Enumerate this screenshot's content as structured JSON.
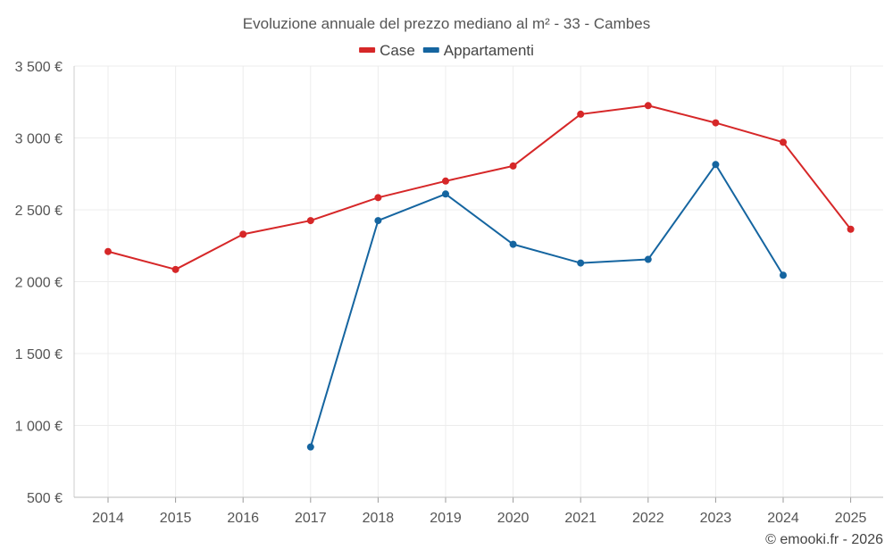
{
  "chart_data": {
    "type": "line",
    "title": "Evoluzione annuale del prezzo mediano al m² - 33 - Cambes",
    "categories": [
      "2014",
      "2015",
      "2016",
      "2017",
      "2018",
      "2019",
      "2020",
      "2021",
      "2022",
      "2023",
      "2024",
      "2025"
    ],
    "y_ticks": [
      500,
      1000,
      1500,
      2000,
      2500,
      3000,
      3500
    ],
    "y_tick_labels": [
      "500 €",
      "1 000 €",
      "1 500 €",
      "2 000 €",
      "2 500 €",
      "3 000 €",
      "3 500 €"
    ],
    "ylim": [
      500,
      3500
    ],
    "xlabel": "",
    "ylabel": "",
    "grid": true,
    "legend_position": "top-center",
    "series": [
      {
        "name": "Case",
        "color": "#d62728",
        "values": [
          2210,
          2085,
          2330,
          2425,
          2585,
          2700,
          2805,
          3165,
          3225,
          3105,
          2970,
          2365
        ]
      },
      {
        "name": "Appartamenti",
        "color": "#1565a0",
        "values": [
          null,
          null,
          null,
          850,
          2425,
          2610,
          2260,
          2130,
          2155,
          2815,
          2045,
          null
        ]
      }
    ]
  },
  "credit": "© emooki.fr - 2026"
}
